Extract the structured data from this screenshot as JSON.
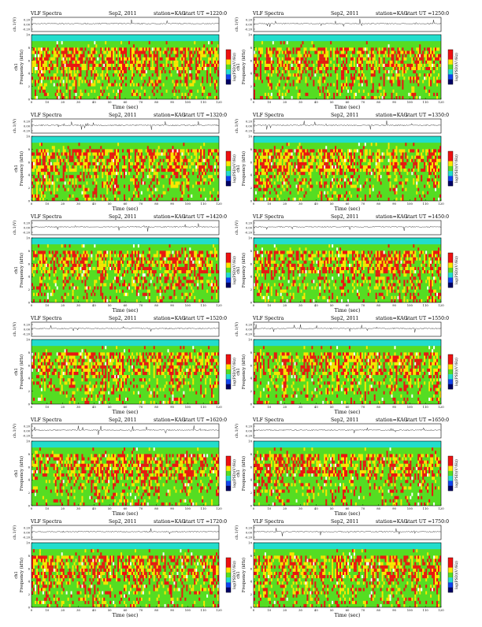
{
  "colors": {
    "red": "#ee1111",
    "yellow": "#ffe600",
    "green": "#55dd22",
    "cyan": "#22ddcc",
    "blue": "#1144ee",
    "navy": "#000066",
    "white": "#ffffff",
    "trace": "#222222"
  },
  "chart_data": [
    {
      "type": "heatmap",
      "header": {
        "left": "VLF Spectra",
        "date": "Sep2, 2011",
        "station": "station=KAG",
        "start": "start  UT  =1220:0"
      },
      "xlabel": "Time  (sec)",
      "ylabel": "Frequency  (kHz)",
      "channel_label": "ch1",
      "trace_label": "ch.1(V)",
      "colorbar_label": "log(PSD)(V²/Hz)",
      "xlim": [
        0,
        120
      ],
      "ylim": [
        0,
        10
      ],
      "xticks": [
        0,
        10,
        20,
        30,
        40,
        50,
        60,
        70,
        80,
        90,
        100,
        110,
        120
      ],
      "yticks": [
        0,
        2,
        4,
        6,
        8,
        10
      ],
      "trace_ticks": [
        "0.20",
        "0.00",
        "-0.20"
      ]
    },
    {
      "type": "heatmap",
      "header": {
        "left": "VLF Spectra",
        "date": "Sep2, 2011",
        "station": "station=KAG",
        "start": "start  UT  =1250:0"
      },
      "xlabel": "Time  (sec)",
      "ylabel": "Frequency  (kHz)",
      "channel_label": "ch1",
      "trace_label": "ch.1(V)",
      "colorbar_label": "log(PSD)(V²/Hz)",
      "xlim": [
        0,
        120
      ],
      "ylim": [
        0,
        10
      ],
      "xticks": [
        0,
        10,
        20,
        30,
        40,
        50,
        60,
        70,
        80,
        90,
        100,
        110,
        120
      ],
      "yticks": [
        0,
        2,
        4,
        6,
        8,
        10
      ],
      "trace_ticks": [
        "0.20",
        "0.00",
        "-0.20"
      ]
    },
    {
      "type": "heatmap",
      "header": {
        "left": "VLF Spectra",
        "date": "Sep2, 2011",
        "station": "station=KAG",
        "start": "start  UT  =1320:0"
      },
      "xlabel": "Time  (sec)",
      "ylabel": "Frequency  (kHz)",
      "channel_label": "ch1",
      "trace_label": "ch.1(V)",
      "colorbar_label": "log(PSD)(V²/Hz)",
      "xlim": [
        0,
        120
      ],
      "ylim": [
        0,
        10
      ],
      "xticks": [
        0,
        10,
        20,
        30,
        40,
        50,
        60,
        70,
        80,
        90,
        100,
        110,
        120
      ],
      "yticks": [
        0,
        2,
        4,
        6,
        8,
        10
      ],
      "trace_ticks": [
        "0.20",
        "0.00",
        "-0.20"
      ]
    },
    {
      "type": "heatmap",
      "header": {
        "left": "VLF Spectra",
        "date": "Sep2, 2011",
        "station": "station=KAG",
        "start": "start  UT  =1350:0"
      },
      "xlabel": "Time  (sec)",
      "ylabel": "Frequency  (kHz)",
      "channel_label": "ch1",
      "trace_label": "ch.1(V)",
      "colorbar_label": "log(PSD)(V²/Hz)",
      "xlim": [
        0,
        120
      ],
      "ylim": [
        0,
        10
      ],
      "xticks": [
        0,
        10,
        20,
        30,
        40,
        50,
        60,
        70,
        80,
        90,
        100,
        110,
        120
      ],
      "yticks": [
        0,
        2,
        4,
        6,
        8,
        10
      ],
      "trace_ticks": [
        "0.20",
        "0.00",
        "-0.20"
      ]
    },
    {
      "type": "heatmap",
      "header": {
        "left": "VLF Spectra",
        "date": "Sep2, 2011",
        "station": "station=KAG",
        "start": "start  UT  =1420:0"
      },
      "xlabel": "Time  (sec)",
      "ylabel": "Frequency  (kHz)",
      "channel_label": "ch1",
      "trace_label": "ch.1(V)",
      "colorbar_label": "log(PSD)(V²/Hz)",
      "xlim": [
        0,
        120
      ],
      "ylim": [
        0,
        10
      ],
      "xticks": [
        0,
        10,
        20,
        30,
        40,
        50,
        60,
        70,
        80,
        90,
        100,
        110,
        120
      ],
      "yticks": [
        0,
        2,
        4,
        6,
        8,
        10
      ],
      "trace_ticks": [
        "0.20",
        "0.00",
        "-0.20"
      ]
    },
    {
      "type": "heatmap",
      "header": {
        "left": "VLF Spectra",
        "date": "Sep2, 2011",
        "station": "station=KAG",
        "start": "start  UT  =1450:0"
      },
      "xlabel": "Time  (sec)",
      "ylabel": "Frequency  (kHz)",
      "channel_label": "ch1",
      "trace_label": "ch.1(V)",
      "colorbar_label": "log(PSD)(V²/Hz)",
      "xlim": [
        0,
        120
      ],
      "ylim": [
        0,
        10
      ],
      "xticks": [
        0,
        10,
        20,
        30,
        40,
        50,
        60,
        70,
        80,
        90,
        100,
        110,
        120
      ],
      "yticks": [
        0,
        2,
        4,
        6,
        8,
        10
      ],
      "trace_ticks": [
        "0.20",
        "0.00",
        "-0.20"
      ]
    },
    {
      "type": "heatmap",
      "header": {
        "left": "VLF Spectra",
        "date": "Sep2, 2011",
        "station": "station=KAG",
        "start": "start  UT  =1520:0"
      },
      "xlabel": "Time  (sec)",
      "ylabel": "Frequency  (kHz)",
      "channel_label": "ch1",
      "trace_label": "ch.1(V)",
      "colorbar_label": "log(PSD)(V²/Hz)",
      "xlim": [
        0,
        120
      ],
      "ylim": [
        0,
        10
      ],
      "xticks": [
        0,
        10,
        20,
        30,
        40,
        50,
        60,
        70,
        80,
        90,
        100,
        110,
        120
      ],
      "yticks": [
        0,
        2,
        4,
        6,
        8,
        10
      ],
      "trace_ticks": [
        "0.20",
        "0.00",
        "-0.20"
      ]
    },
    {
      "type": "heatmap",
      "header": {
        "left": "VLF Spectra",
        "date": "Sep2, 2011",
        "station": "station=KAG",
        "start": "start  UT  =1550:0"
      },
      "xlabel": "Time  (sec)",
      "ylabel": "Frequency  (kHz)",
      "channel_label": "ch1",
      "trace_label": "ch.1(V)",
      "colorbar_label": "log(PSD)(V²/Hz)",
      "xlim": [
        0,
        120
      ],
      "ylim": [
        0,
        10
      ],
      "xticks": [
        0,
        10,
        20,
        30,
        40,
        50,
        60,
        70,
        80,
        90,
        100,
        110,
        120
      ],
      "yticks": [
        0,
        2,
        4,
        6,
        8,
        10
      ],
      "trace_ticks": [
        "0.20",
        "0.00",
        "-0.20"
      ]
    },
    {
      "type": "heatmap",
      "header": {
        "left": "VLF Spectra",
        "date": "Sep2, 2011",
        "station": "station=KAG",
        "start": "start  UT  =1620:0"
      },
      "xlabel": "Time  (sec)",
      "ylabel": "Frequency  (kHz)",
      "channel_label": "ch1",
      "trace_label": "ch.1(V)",
      "colorbar_label": "log(PSD)(V²/Hz)",
      "xlim": [
        0,
        120
      ],
      "ylim": [
        0,
        10
      ],
      "xticks": [
        0,
        10,
        20,
        30,
        40,
        50,
        60,
        70,
        80,
        90,
        100,
        110,
        120
      ],
      "yticks": [
        0,
        2,
        4,
        6,
        8,
        10
      ],
      "trace_ticks": [
        "0.20",
        "0.00",
        "-0.20"
      ]
    },
    {
      "type": "heatmap",
      "header": {
        "left": "VLF Spectra",
        "date": "Sep2, 2011",
        "station": "station=KAG",
        "start": "start  UT  =1650:0"
      },
      "xlabel": "Time  (sec)",
      "ylabel": "Frequency  (kHz)",
      "channel_label": "ch1",
      "trace_label": "ch.1(V)",
      "colorbar_label": "log(PSD)(V²/Hz)",
      "xlim": [
        0,
        120
      ],
      "ylim": [
        0,
        10
      ],
      "xticks": [
        0,
        10,
        20,
        30,
        40,
        50,
        60,
        70,
        80,
        90,
        100,
        110,
        120
      ],
      "yticks": [
        0,
        2,
        4,
        6,
        8,
        10
      ],
      "trace_ticks": [
        "0.20",
        "0.00",
        "-0.20"
      ]
    },
    {
      "type": "heatmap",
      "header": {
        "left": "VLF Spectra",
        "date": "Sep2, 2011",
        "station": "station=KAG",
        "start": "start  UT  =1720:0"
      },
      "xlabel": "Time  (sec)",
      "ylabel": "Frequency  (kHz)",
      "channel_label": "ch1",
      "trace_label": "ch.1(V)",
      "colorbar_label": "log(PSD)(V²/Hz)",
      "xlim": [
        0,
        120
      ],
      "ylim": [
        0,
        10
      ],
      "xticks": [
        0,
        10,
        20,
        30,
        40,
        50,
        60,
        70,
        80,
        90,
        100,
        110,
        120
      ],
      "yticks": [
        0,
        2,
        4,
        6,
        8,
        10
      ],
      "trace_ticks": [
        "0.20",
        "0.00",
        "-0.20"
      ]
    },
    {
      "type": "heatmap",
      "header": {
        "left": "VLF Spectra",
        "date": "Sep2, 2011",
        "station": "station=KAG",
        "start": "start  UT  =1750:0"
      },
      "xlabel": "Time  (sec)",
      "ylabel": "Frequency  (kHz)",
      "channel_label": "ch1",
      "trace_label": "ch.1(V)",
      "colorbar_label": "log(PSD)(V²/Hz)",
      "xlim": [
        0,
        120
      ],
      "ylim": [
        0,
        10
      ],
      "xticks": [
        0,
        10,
        20,
        30,
        40,
        50,
        60,
        70,
        80,
        90,
        100,
        110,
        120
      ],
      "yticks": [
        0,
        2,
        4,
        6,
        8,
        10
      ],
      "trace_ticks": [
        "0.20",
        "0.00",
        "-0.20"
      ]
    }
  ]
}
